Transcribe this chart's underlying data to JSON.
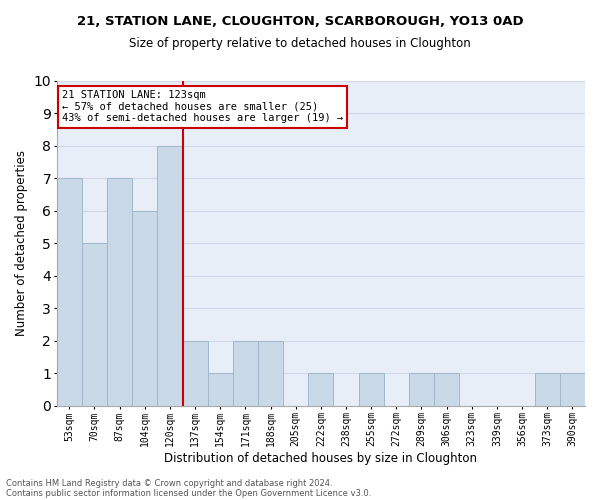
{
  "title1": "21, STATION LANE, CLOUGHTON, SCARBOROUGH, YO13 0AD",
  "title2": "Size of property relative to detached houses in Cloughton",
  "xlabel": "Distribution of detached houses by size in Cloughton",
  "ylabel": "Number of detached properties",
  "categories": [
    "53sqm",
    "70sqm",
    "87sqm",
    "104sqm",
    "120sqm",
    "137sqm",
    "154sqm",
    "171sqm",
    "188sqm",
    "205sqm",
    "222sqm",
    "238sqm",
    "255sqm",
    "272sqm",
    "289sqm",
    "306sqm",
    "323sqm",
    "339sqm",
    "356sqm",
    "373sqm",
    "390sqm"
  ],
  "values": [
    7,
    5,
    7,
    6,
    8,
    2,
    1,
    2,
    2,
    0,
    1,
    0,
    1,
    0,
    1,
    1,
    0,
    0,
    0,
    1,
    1
  ],
  "bar_color": "#c9d9e8",
  "bar_edge_color": "#a0b8cc",
  "red_line_index": 4,
  "red_line_color": "#cc0000",
  "ylim": [
    0,
    10
  ],
  "yticks": [
    0,
    1,
    2,
    3,
    4,
    5,
    6,
    7,
    8,
    9,
    10
  ],
  "annotation_title": "21 STATION LANE: 123sqm",
  "annotation_line1": "← 57% of detached houses are smaller (25)",
  "annotation_line2": "43% of semi-detached houses are larger (19) →",
  "annotation_box_color": "#ffffff",
  "annotation_box_edge": "#cc0000",
  "footnote1": "Contains HM Land Registry data © Crown copyright and database right 2024.",
  "footnote2": "Contains public sector information licensed under the Open Government Licence v3.0.",
  "grid_color": "#d0d8e8",
  "background_color": "#e8eef8"
}
